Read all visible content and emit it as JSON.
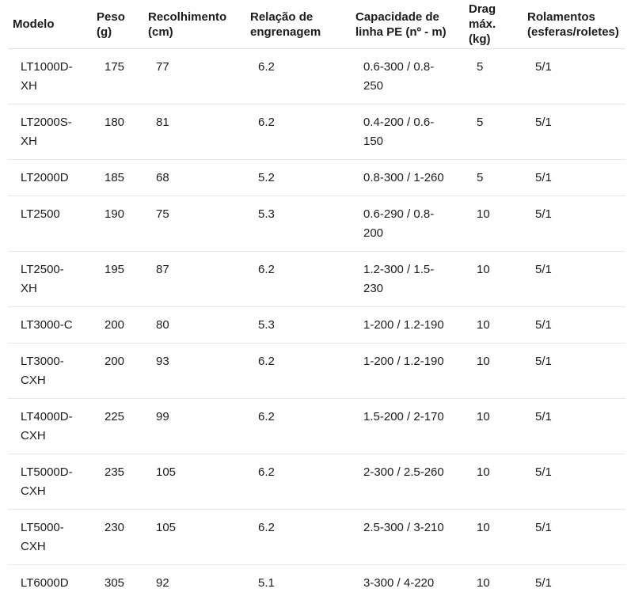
{
  "page": {
    "background_color": "#ffffff",
    "text_color": "#1c1c1c",
    "divider_color": "#e7e7e7"
  },
  "table": {
    "columns": [
      {
        "key": "modelo",
        "label": "Modelo"
      },
      {
        "key": "peso",
        "label": "Peso (g)"
      },
      {
        "key": "recolhimento",
        "label": "Recolhimento (cm)"
      },
      {
        "key": "relacao",
        "label": "Relação de engrenagem"
      },
      {
        "key": "capacidade",
        "label": "Capacidade de linha PE (nº - m)"
      },
      {
        "key": "drag",
        "label": "Drag máx. (kg)"
      },
      {
        "key": "rolamentos",
        "label": "Rolamentos (esferas/roletes)"
      }
    ],
    "rows": [
      [
        "LT1000D-XH",
        "175",
        "77",
        "6.2",
        "0.6-300 / 0.8-250",
        "5",
        "5/1"
      ],
      [
        "LT2000S-XH",
        "180",
        "81",
        "6.2",
        "0.4-200 / 0.6-150",
        "5",
        "5/1"
      ],
      [
        "LT2000D",
        "185",
        "68",
        "5.2",
        "0.8-300 / 1-260",
        "5",
        "5/1"
      ],
      [
        "LT2500",
        "190",
        "75",
        "5.3",
        "0.6-290 / 0.8-200",
        "10",
        "5/1"
      ],
      [
        "LT2500-XH",
        "195",
        "87",
        "6.2",
        "1.2-300 / 1.5-230",
        "10",
        "5/1"
      ],
      [
        "LT3000-C",
        "200",
        "80",
        "5.3",
        "1-200 / 1.2-190",
        "10",
        "5/1"
      ],
      [
        "LT3000-CXH",
        "200",
        "93",
        "6.2",
        "1-200 / 1.2-190",
        "10",
        "5/1"
      ],
      [
        "LT4000D-CXH",
        "225",
        "99",
        "6.2",
        "1.5-200 / 2-170",
        "10",
        "5/1"
      ],
      [
        "LT5000D-CXH",
        "235",
        "105",
        "6.2",
        "2-300 / 2.5-260",
        "10",
        "5/1"
      ],
      [
        "LT5000-CXH",
        "230",
        "105",
        "6.2",
        "2.5-300 / 3-210",
        "10",
        "5/1"
      ],
      [
        "LT6000D",
        "305",
        "92",
        "5.1",
        "3-300 / 4-220",
        "10",
        "5/1"
      ]
    ]
  }
}
